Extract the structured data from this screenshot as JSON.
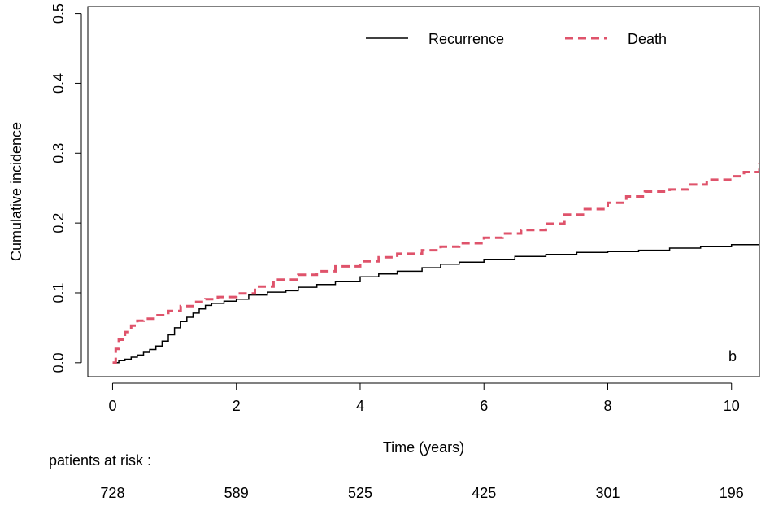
{
  "chart_data": {
    "type": "line",
    "title": "",
    "xlabel": "Time (years)",
    "ylabel": "Cumulative incidence",
    "xlim": [
      -0.4,
      10.45
    ],
    "ylim": [
      -0.02,
      0.51
    ],
    "xticks": [
      "0",
      "2",
      "4",
      "6",
      "8",
      "10"
    ],
    "yticks": [
      "0.0",
      "0.1",
      "0.2",
      "0.3",
      "0.4",
      "0.5"
    ],
    "panel_label": "b",
    "legend_position": "top-right",
    "grid": false,
    "colors": {
      "recurrence": "#000000",
      "death": "#DF536B"
    },
    "series": [
      {
        "name": "Recurrence",
        "style": "solid",
        "x": [
          0,
          0.1,
          0.2,
          0.3,
          0.4,
          0.5,
          0.6,
          0.7,
          0.8,
          0.9,
          1.0,
          1.1,
          1.2,
          1.3,
          1.4,
          1.5,
          1.6,
          1.8,
          2.0,
          2.2,
          2.5,
          2.8,
          3.0,
          3.3,
          3.6,
          4.0,
          4.3,
          4.6,
          5.0,
          5.3,
          5.6,
          6.0,
          6.5,
          7.0,
          7.5,
          8.0,
          8.5,
          9.0,
          9.5,
          10.0,
          10.45
        ],
        "y": [
          0,
          0.003,
          0.005,
          0.008,
          0.011,
          0.015,
          0.019,
          0.024,
          0.031,
          0.04,
          0.05,
          0.059,
          0.065,
          0.071,
          0.077,
          0.082,
          0.085,
          0.088,
          0.091,
          0.097,
          0.101,
          0.103,
          0.108,
          0.112,
          0.116,
          0.123,
          0.127,
          0.131,
          0.136,
          0.141,
          0.144,
          0.148,
          0.152,
          0.155,
          0.158,
          0.159,
          0.161,
          0.164,
          0.166,
          0.169,
          0.172
        ]
      },
      {
        "name": "Death",
        "style": "dashed",
        "x": [
          0,
          0.05,
          0.1,
          0.2,
          0.3,
          0.4,
          0.5,
          0.7,
          0.9,
          1.1,
          1.3,
          1.5,
          1.7,
          2.0,
          2.3,
          2.6,
          3.0,
          3.3,
          3.6,
          4.0,
          4.3,
          4.6,
          5.0,
          5.3,
          5.6,
          6.0,
          6.3,
          6.6,
          7.0,
          7.3,
          7.6,
          8.0,
          8.3,
          8.6,
          9.0,
          9.3,
          9.6,
          10.0,
          10.2,
          10.45
        ],
        "y": [
          0,
          0.02,
          0.033,
          0.044,
          0.053,
          0.06,
          0.063,
          0.068,
          0.074,
          0.081,
          0.087,
          0.091,
          0.094,
          0.099,
          0.109,
          0.119,
          0.126,
          0.131,
          0.138,
          0.145,
          0.151,
          0.156,
          0.161,
          0.166,
          0.171,
          0.179,
          0.185,
          0.19,
          0.199,
          0.212,
          0.22,
          0.229,
          0.238,
          0.245,
          0.248,
          0.255,
          0.262,
          0.267,
          0.273,
          0.286
        ]
      }
    ],
    "risk_table": {
      "label": "patients at risk :",
      "times": [
        0,
        2,
        4,
        6,
        8,
        10
      ],
      "values": [
        "728",
        "589",
        "525",
        "425",
        "301",
        "196"
      ]
    }
  }
}
